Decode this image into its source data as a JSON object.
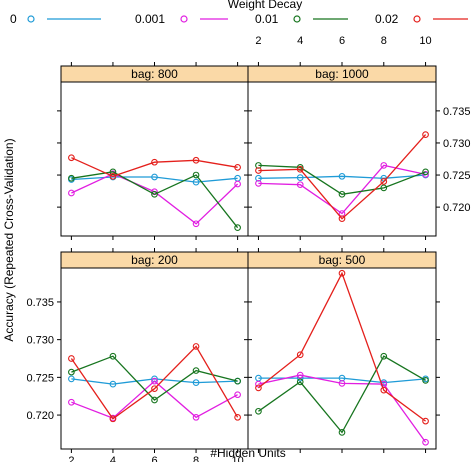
{
  "chart_data": {
    "type": "line",
    "layout": "trellis 2x2",
    "legend_title": "Weight Decay",
    "legend_placement": "top",
    "xlabel": "#Hidden Units",
    "ylabel": "Accuracy (Repeated Cross-Validation)",
    "x": [
      2,
      4,
      6,
      8,
      10
    ],
    "xlim": [
      1.5,
      10.5
    ],
    "ylim": [
      0.7155,
      0.7395
    ],
    "xticks": [
      2,
      4,
      6,
      8,
      10
    ],
    "xtick_labels": [
      "2",
      "4",
      "6",
      "8",
      "10"
    ],
    "yticks": [
      0.72,
      0.725,
      0.73,
      0.735
    ],
    "ytick_labels": [
      "0.720",
      "0.725",
      "0.730",
      "0.735"
    ],
    "series_styles": [
      {
        "name": "0",
        "color": "#1f9bd7"
      },
      {
        "name": "0.001",
        "color": "#e11ee1"
      },
      {
        "name": "0.01",
        "color": "#17751f"
      },
      {
        "name": "0.02",
        "color": "#e4201c"
      }
    ],
    "panels": [
      {
        "title": "bag: 800",
        "row": 0,
        "col": 0,
        "series": [
          {
            "name": "0",
            "values": [
              0.7243,
              0.7247,
              0.7247,
              0.7239,
              0.7245
            ]
          },
          {
            "name": "0.001",
            "values": [
              0.7222,
              0.7252,
              0.7224,
              0.7174,
              0.7236
            ]
          },
          {
            "name": "0.01",
            "values": [
              0.7245,
              0.7255,
              0.722,
              0.725,
              0.7168
            ]
          },
          {
            "name": "0.02",
            "values": [
              0.7277,
              0.7248,
              0.727,
              0.7273,
              0.7262
            ]
          }
        ]
      },
      {
        "title": "bag: 1000",
        "row": 0,
        "col": 1,
        "series": [
          {
            "name": "0",
            "values": [
              0.7245,
              0.7246,
              0.7248,
              0.7245,
              0.725
            ]
          },
          {
            "name": "0.001",
            "values": [
              0.7237,
              0.7235,
              0.719,
              0.7265,
              0.7251
            ]
          },
          {
            "name": "0.01",
            "values": [
              0.7265,
              0.7262,
              0.722,
              0.723,
              0.7255
            ]
          },
          {
            "name": "0.02",
            "values": [
              0.7257,
              0.7259,
              0.7182,
              0.724,
              0.7313
            ]
          }
        ]
      },
      {
        "title": "bag: 200",
        "row": 1,
        "col": 0,
        "series": [
          {
            "name": "0",
            "values": [
              0.7248,
              0.7241,
              0.7248,
              0.7243,
              0.7245
            ]
          },
          {
            "name": "0.001",
            "values": [
              0.7217,
              0.7196,
              0.7245,
              0.7197,
              0.7227
            ]
          },
          {
            "name": "0.01",
            "values": [
              0.7257,
              0.7278,
              0.722,
              0.7259,
              0.7245
            ]
          },
          {
            "name": "0.02",
            "values": [
              0.7275,
              0.7195,
              0.7235,
              0.7291,
              0.7197
            ]
          }
        ]
      },
      {
        "title": "bag: 500",
        "row": 1,
        "col": 1,
        "series": [
          {
            "name": "0",
            "values": [
              0.7249,
              0.7249,
              0.7249,
              0.7243,
              0.7248
            ]
          },
          {
            "name": "0.001",
            "values": [
              0.7241,
              0.7253,
              0.7242,
              0.7241,
              0.7164
            ]
          },
          {
            "name": "0.01",
            "values": [
              0.7205,
              0.7244,
              0.7177,
              0.7278,
              0.7246
            ]
          },
          {
            "name": "0.02",
            "values": [
              0.7236,
              0.728,
              0.7388,
              0.7233,
              0.7192
            ]
          }
        ]
      }
    ]
  }
}
